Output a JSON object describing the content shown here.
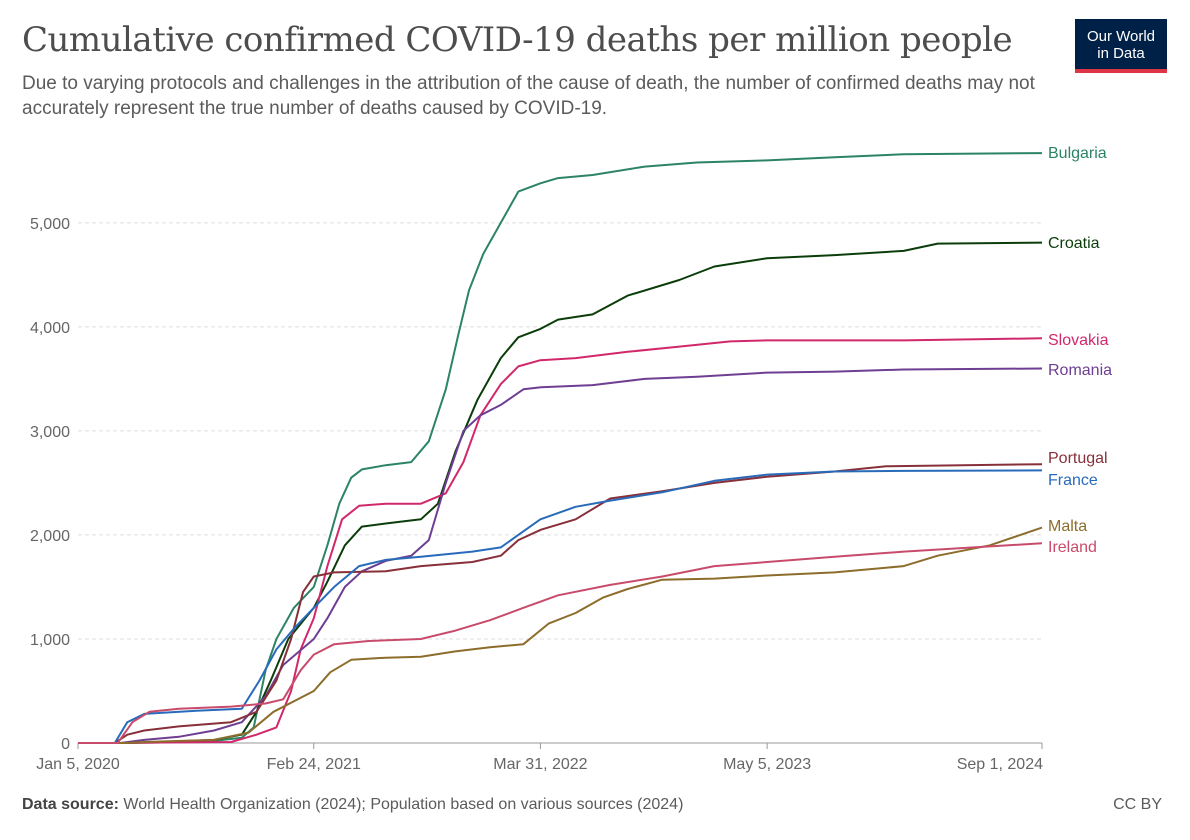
{
  "header": {
    "title": "Cumulative confirmed COVID-19 deaths per million people",
    "subtitle": "Due to varying protocols and challenges in the attribution of the cause of death, the number of confirmed deaths may not accurately represent the true number of deaths caused by COVID-19."
  },
  "logo": {
    "line1": "Our World",
    "line2": "in Data",
    "bg": "#002147",
    "accent": "#dc3545"
  },
  "footer": {
    "source_label": "Data source:",
    "source_text": "World Health Organization (2024); Population based on various sources (2024)",
    "license": "CC BY"
  },
  "chart_data": {
    "type": "line",
    "title": "Cumulative confirmed COVID-19 deaths per million people",
    "xlabel": "",
    "ylabel": "",
    "x_ticks": [
      "Jan 5, 2020",
      "Feb 24, 2021",
      "Mar 31, 2022",
      "May 5, 2023",
      "Sep 1, 2024"
    ],
    "x_range": [
      "2020-01-05",
      "2024-09-01"
    ],
    "ylim": [
      0,
      5700
    ],
    "y_ticks": [
      0,
      1000,
      2000,
      3000,
      4000,
      5000
    ],
    "y_tick_labels": [
      "0",
      "1,000",
      "2,000",
      "3,000",
      "4,000",
      "5,000"
    ],
    "grid": "horizontal dashed",
    "legend": "direct labels at line ends (right)",
    "series": [
      {
        "name": "Bulgaria",
        "color": "#2c8465",
        "points": [
          [
            "2020-01-05",
            0
          ],
          [
            "2020-03-20",
            0
          ],
          [
            "2020-06-01",
            5
          ],
          [
            "2020-09-01",
            20
          ],
          [
            "2020-10-20",
            50
          ],
          [
            "2020-11-10",
            150
          ],
          [
            "2020-12-01",
            700
          ],
          [
            "2020-12-20",
            1000
          ],
          [
            "2021-01-20",
            1300
          ],
          [
            "2021-02-24",
            1500
          ],
          [
            "2021-03-20",
            1900
          ],
          [
            "2021-04-10",
            2300
          ],
          [
            "2021-05-01",
            2550
          ],
          [
            "2021-05-20",
            2630
          ],
          [
            "2021-07-01",
            2670
          ],
          [
            "2021-08-15",
            2700
          ],
          [
            "2021-09-15",
            2900
          ],
          [
            "2021-10-15",
            3400
          ],
          [
            "2021-11-05",
            3900
          ],
          [
            "2021-11-25",
            4350
          ],
          [
            "2021-12-20",
            4700
          ],
          [
            "2022-01-20",
            5000
          ],
          [
            "2022-02-20",
            5300
          ],
          [
            "2022-03-31",
            5380
          ],
          [
            "2022-05-01",
            5430
          ],
          [
            "2022-07-01",
            5460
          ],
          [
            "2022-10-01",
            5540
          ],
          [
            "2023-01-01",
            5580
          ],
          [
            "2023-05-05",
            5600
          ],
          [
            "2023-09-01",
            5630
          ],
          [
            "2024-01-01",
            5660
          ],
          [
            "2024-09-01",
            5670
          ]
        ]
      },
      {
        "name": "Croatia",
        "color": "#0b3d0b",
        "points": [
          [
            "2020-01-05",
            0
          ],
          [
            "2020-03-20",
            0
          ],
          [
            "2020-06-01",
            10
          ],
          [
            "2020-09-01",
            30
          ],
          [
            "2020-10-20",
            80
          ],
          [
            "2020-11-15",
            300
          ],
          [
            "2020-12-10",
            600
          ],
          [
            "2021-01-10",
            1000
          ],
          [
            "2021-02-24",
            1300
          ],
          [
            "2021-03-20",
            1550
          ],
          [
            "2021-04-20",
            1900
          ],
          [
            "2021-05-20",
            2080
          ],
          [
            "2021-07-01",
            2110
          ],
          [
            "2021-09-01",
            2150
          ],
          [
            "2021-10-01",
            2300
          ],
          [
            "2021-11-01",
            2800
          ],
          [
            "2021-12-10",
            3300
          ],
          [
            "2022-01-20",
            3700
          ],
          [
            "2022-02-20",
            3900
          ],
          [
            "2022-03-31",
            3980
          ],
          [
            "2022-05-01",
            4070
          ],
          [
            "2022-07-01",
            4120
          ],
          [
            "2022-09-01",
            4300
          ],
          [
            "2022-12-01",
            4450
          ],
          [
            "2023-02-01",
            4580
          ],
          [
            "2023-05-05",
            4660
          ],
          [
            "2023-09-01",
            4690
          ],
          [
            "2024-01-01",
            4730
          ],
          [
            "2024-03-01",
            4800
          ],
          [
            "2024-09-01",
            4810
          ]
        ]
      },
      {
        "name": "Slovakia",
        "color": "#d1286b",
        "points": [
          [
            "2020-01-05",
            0
          ],
          [
            "2020-03-20",
            0
          ],
          [
            "2020-06-01",
            5
          ],
          [
            "2020-10-01",
            10
          ],
          [
            "2020-11-15",
            80
          ],
          [
            "2020-12-20",
            150
          ],
          [
            "2021-01-15",
            500
          ],
          [
            "2021-02-01",
            900
          ],
          [
            "2021-02-24",
            1200
          ],
          [
            "2021-03-20",
            1700
          ],
          [
            "2021-04-15",
            2150
          ],
          [
            "2021-05-15",
            2280
          ],
          [
            "2021-07-01",
            2300
          ],
          [
            "2021-09-01",
            2300
          ],
          [
            "2021-10-15",
            2400
          ],
          [
            "2021-11-15",
            2700
          ],
          [
            "2021-12-15",
            3150
          ],
          [
            "2022-01-20",
            3450
          ],
          [
            "2022-02-20",
            3620
          ],
          [
            "2022-03-31",
            3680
          ],
          [
            "2022-06-01",
            3700
          ],
          [
            "2022-09-01",
            3760
          ],
          [
            "2022-12-01",
            3810
          ],
          [
            "2023-03-01",
            3860
          ],
          [
            "2023-05-05",
            3870
          ],
          [
            "2024-01-01",
            3870
          ],
          [
            "2024-09-01",
            3890
          ]
        ]
      },
      {
        "name": "Romania",
        "color": "#6d3e91",
        "points": [
          [
            "2020-01-05",
            0
          ],
          [
            "2020-03-20",
            0
          ],
          [
            "2020-05-01",
            30
          ],
          [
            "2020-07-01",
            60
          ],
          [
            "2020-09-01",
            120
          ],
          [
            "2020-10-20",
            200
          ],
          [
            "2020-12-01",
            450
          ],
          [
            "2021-01-01",
            750
          ],
          [
            "2021-02-24",
            1000
          ],
          [
            "2021-03-20",
            1200
          ],
          [
            "2021-04-20",
            1500
          ],
          [
            "2021-05-20",
            1650
          ],
          [
            "2021-07-01",
            1750
          ],
          [
            "2021-08-15",
            1800
          ],
          [
            "2021-09-15",
            1950
          ],
          [
            "2021-10-15",
            2500
          ],
          [
            "2021-11-15",
            3000
          ],
          [
            "2021-12-15",
            3150
          ],
          [
            "2022-01-20",
            3250
          ],
          [
            "2022-03-01",
            3400
          ],
          [
            "2022-04-01",
            3420
          ],
          [
            "2022-07-01",
            3440
          ],
          [
            "2022-10-01",
            3500
          ],
          [
            "2023-01-01",
            3520
          ],
          [
            "2023-05-05",
            3560
          ],
          [
            "2023-09-01",
            3570
          ],
          [
            "2024-01-01",
            3590
          ],
          [
            "2024-09-01",
            3600
          ]
        ]
      },
      {
        "name": "Portugal",
        "color": "#883039",
        "points": [
          [
            "2020-01-05",
            0
          ],
          [
            "2020-03-10",
            0
          ],
          [
            "2020-04-01",
            80
          ],
          [
            "2020-05-01",
            120
          ],
          [
            "2020-07-01",
            160
          ],
          [
            "2020-10-01",
            200
          ],
          [
            "2020-11-15",
            300
          ],
          [
            "2020-12-20",
            600
          ],
          [
            "2021-01-15",
            1000
          ],
          [
            "2021-02-05",
            1450
          ],
          [
            "2021-02-24",
            1600
          ],
          [
            "2021-04-01",
            1640
          ],
          [
            "2021-07-01",
            1650
          ],
          [
            "2021-09-01",
            1700
          ],
          [
            "2021-12-01",
            1740
          ],
          [
            "2022-01-20",
            1800
          ],
          [
            "2022-02-20",
            1950
          ],
          [
            "2022-04-01",
            2050
          ],
          [
            "2022-06-01",
            2150
          ],
          [
            "2022-08-01",
            2350
          ],
          [
            "2022-11-01",
            2420
          ],
          [
            "2023-02-01",
            2500
          ],
          [
            "2023-05-05",
            2560
          ],
          [
            "2023-09-01",
            2610
          ],
          [
            "2023-12-01",
            2660
          ],
          [
            "2024-09-01",
            2680
          ]
        ]
      },
      {
        "name": "France",
        "color": "#286bbb",
        "points": [
          [
            "2020-01-05",
            0
          ],
          [
            "2020-03-10",
            0
          ],
          [
            "2020-04-01",
            200
          ],
          [
            "2020-05-01",
            280
          ],
          [
            "2020-08-01",
            310
          ],
          [
            "2020-10-20",
            330
          ],
          [
            "2020-11-20",
            600
          ],
          [
            "2020-12-20",
            900
          ],
          [
            "2021-01-20",
            1100
          ],
          [
            "2021-02-24",
            1300
          ],
          [
            "2021-04-01",
            1500
          ],
          [
            "2021-05-15",
            1700
          ],
          [
            "2021-07-01",
            1760
          ],
          [
            "2021-09-01",
            1790
          ],
          [
            "2021-12-01",
            1840
          ],
          [
            "2022-01-20",
            1880
          ],
          [
            "2022-02-20",
            2000
          ],
          [
            "2022-03-31",
            2150
          ],
          [
            "2022-06-01",
            2270
          ],
          [
            "2022-08-01",
            2330
          ],
          [
            "2022-11-01",
            2410
          ],
          [
            "2023-02-01",
            2520
          ],
          [
            "2023-05-05",
            2580
          ],
          [
            "2023-09-01",
            2610
          ],
          [
            "2024-01-01",
            2615
          ],
          [
            "2024-09-01",
            2620
          ]
        ]
      },
      {
        "name": "Malta",
        "color": "#8c6d2b",
        "points": [
          [
            "2020-01-05",
            0
          ],
          [
            "2020-04-01",
            0
          ],
          [
            "2020-05-01",
            10
          ],
          [
            "2020-09-01",
            30
          ],
          [
            "2020-11-01",
            100
          ],
          [
            "2020-12-15",
            300
          ],
          [
            "2021-02-24",
            500
          ],
          [
            "2021-03-25",
            680
          ],
          [
            "2021-05-01",
            800
          ],
          [
            "2021-07-01",
            820
          ],
          [
            "2021-09-01",
            830
          ],
          [
            "2021-11-01",
            880
          ],
          [
            "2022-01-01",
            920
          ],
          [
            "2022-03-01",
            950
          ],
          [
            "2022-04-15",
            1150
          ],
          [
            "2022-06-01",
            1250
          ],
          [
            "2022-07-20",
            1400
          ],
          [
            "2022-09-01",
            1480
          ],
          [
            "2022-11-01",
            1570
          ],
          [
            "2023-02-01",
            1580
          ],
          [
            "2023-05-05",
            1610
          ],
          [
            "2023-09-01",
            1640
          ],
          [
            "2024-01-01",
            1700
          ],
          [
            "2024-03-01",
            1800
          ],
          [
            "2024-06-01",
            1900
          ],
          [
            "2024-09-01",
            2070
          ]
        ]
      },
      {
        "name": "Ireland",
        "color": "#c84b6b",
        "points": [
          [
            "2020-01-05",
            0
          ],
          [
            "2020-03-15",
            0
          ],
          [
            "2020-04-10",
            200
          ],
          [
            "2020-05-10",
            300
          ],
          [
            "2020-07-01",
            330
          ],
          [
            "2020-10-01",
            350
          ],
          [
            "2020-12-01",
            380
          ],
          [
            "2021-01-01",
            420
          ],
          [
            "2021-02-01",
            700
          ],
          [
            "2021-02-24",
            850
          ],
          [
            "2021-04-01",
            950
          ],
          [
            "2021-06-01",
            980
          ],
          [
            "2021-09-01",
            1000
          ],
          [
            "2021-11-01",
            1080
          ],
          [
            "2022-01-01",
            1180
          ],
          [
            "2022-03-01",
            1300
          ],
          [
            "2022-05-01",
            1420
          ],
          [
            "2022-08-01",
            1520
          ],
          [
            "2022-11-01",
            1600
          ],
          [
            "2023-02-01",
            1700
          ],
          [
            "2023-05-05",
            1740
          ],
          [
            "2023-09-01",
            1790
          ],
          [
            "2024-01-01",
            1840
          ],
          [
            "2024-09-01",
            1920
          ]
        ]
      }
    ]
  }
}
